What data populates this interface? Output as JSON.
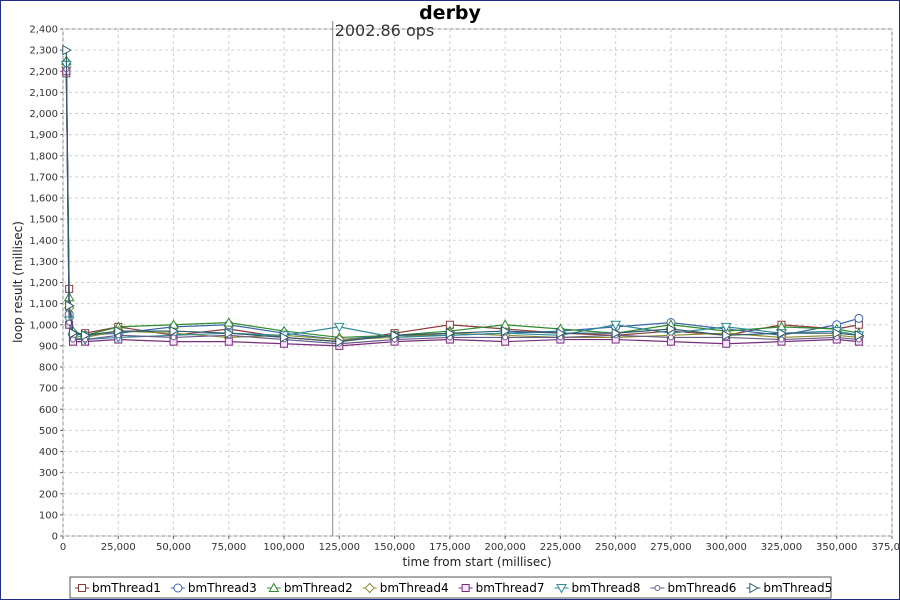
{
  "chart_data": {
    "type": "line",
    "title": "derby",
    "xlabel": "time from start (millisec)",
    "ylabel": "loop result (millisec)",
    "xlim": [
      0,
      375000
    ],
    "ylim": [
      0,
      2400
    ],
    "x_ticks": [
      "0",
      "25,000",
      "50,000",
      "75,000",
      "100,000",
      "125,000",
      "150,000",
      "175,000",
      "200,000",
      "225,000",
      "250,000",
      "275,000",
      "300,000",
      "325,000",
      "350,000",
      "375,000"
    ],
    "y_ticks": [
      "0",
      "100",
      "200",
      "300",
      "400",
      "500",
      "600",
      "700",
      "800",
      "900",
      "1,000",
      "1,100",
      "1,200",
      "1,300",
      "1,400",
      "1,500",
      "1,600",
      "1,700",
      "1,800",
      "1,900",
      "2,000",
      "2,100",
      "2,200",
      "2,300",
      "2,400"
    ],
    "grid": true,
    "legend_position": "bottom",
    "annotation": {
      "text": "2002.86 ops",
      "x": 122000
    },
    "series": [
      {
        "name": "bmThread1",
        "marker": "square",
        "color": "#8b3a3a",
        "points": [
          [
            1500,
            2190
          ],
          [
            2800,
            1170
          ],
          [
            4500,
            950
          ],
          [
            10000,
            960
          ],
          [
            25000,
            990
          ],
          [
            50000,
            950
          ],
          [
            75000,
            980
          ],
          [
            100000,
            940
          ],
          [
            125000,
            920
          ],
          [
            150000,
            960
          ],
          [
            175000,
            1000
          ],
          [
            200000,
            980
          ],
          [
            225000,
            960
          ],
          [
            250000,
            950
          ],
          [
            275000,
            970
          ],
          [
            300000,
            950
          ],
          [
            325000,
            1000
          ],
          [
            350000,
            980
          ],
          [
            360000,
            1000
          ]
        ]
      },
      {
        "name": "bmThread3",
        "marker": "circle",
        "color": "#3a66a8",
        "points": [
          [
            1500,
            2240
          ],
          [
            2800,
            1050
          ],
          [
            4500,
            960
          ],
          [
            10000,
            950
          ],
          [
            25000,
            960
          ],
          [
            50000,
            990
          ],
          [
            75000,
            1000
          ],
          [
            100000,
            960
          ],
          [
            125000,
            930
          ],
          [
            150000,
            950
          ],
          [
            175000,
            950
          ],
          [
            200000,
            960
          ],
          [
            225000,
            970
          ],
          [
            250000,
            990
          ],
          [
            275000,
            1010
          ],
          [
            300000,
            980
          ],
          [
            325000,
            950
          ],
          [
            350000,
            1000
          ],
          [
            360000,
            1030
          ]
        ]
      },
      {
        "name": "bmThread2",
        "marker": "triangle-up",
        "color": "#2e8b2e",
        "points": [
          [
            1500,
            2250
          ],
          [
            2800,
            1130
          ],
          [
            4500,
            970
          ],
          [
            10000,
            950
          ],
          [
            25000,
            990
          ],
          [
            50000,
            1000
          ],
          [
            75000,
            1010
          ],
          [
            100000,
            970
          ],
          [
            125000,
            940
          ],
          [
            150000,
            950
          ],
          [
            175000,
            970
          ],
          [
            200000,
            1000
          ],
          [
            225000,
            980
          ],
          [
            250000,
            960
          ],
          [
            275000,
            1000
          ],
          [
            300000,
            970
          ],
          [
            325000,
            990
          ],
          [
            350000,
            980
          ],
          [
            360000,
            960
          ]
        ]
      },
      {
        "name": "bmThread4",
        "marker": "diamond",
        "color": "#8b8b2e",
        "points": [
          [
            1500,
            2220
          ],
          [
            2800,
            1080
          ],
          [
            4500,
            950
          ],
          [
            10000,
            940
          ],
          [
            25000,
            970
          ],
          [
            50000,
            960
          ],
          [
            75000,
            940
          ],
          [
            100000,
            950
          ],
          [
            125000,
            930
          ],
          [
            150000,
            940
          ],
          [
            175000,
            960
          ],
          [
            200000,
            950
          ],
          [
            225000,
            940
          ],
          [
            250000,
            940
          ],
          [
            275000,
            950
          ],
          [
            300000,
            960
          ],
          [
            325000,
            940
          ],
          [
            350000,
            950
          ],
          [
            360000,
            940
          ]
        ]
      },
      {
        "name": "bmThread7",
        "marker": "square-open",
        "color": "#7a2e7a",
        "points": [
          [
            1500,
            2200
          ],
          [
            2800,
            1000
          ],
          [
            4500,
            920
          ],
          [
            10000,
            920
          ],
          [
            25000,
            930
          ],
          [
            50000,
            920
          ],
          [
            75000,
            920
          ],
          [
            100000,
            910
          ],
          [
            125000,
            900
          ],
          [
            150000,
            920
          ],
          [
            175000,
            930
          ],
          [
            200000,
            920
          ],
          [
            225000,
            930
          ],
          [
            250000,
            930
          ],
          [
            275000,
            920
          ],
          [
            300000,
            910
          ],
          [
            325000,
            920
          ],
          [
            350000,
            930
          ],
          [
            360000,
            920
          ]
        ]
      },
      {
        "name": "bmThread8",
        "marker": "triangle-down",
        "color": "#2e8b9a",
        "points": [
          [
            1500,
            2230
          ],
          [
            2800,
            1020
          ],
          [
            4500,
            940
          ],
          [
            10000,
            930
          ],
          [
            25000,
            940
          ],
          [
            50000,
            950
          ],
          [
            75000,
            960
          ],
          [
            100000,
            950
          ],
          [
            125000,
            990
          ],
          [
            150000,
            940
          ],
          [
            175000,
            950
          ],
          [
            200000,
            960
          ],
          [
            225000,
            950
          ],
          [
            250000,
            1000
          ],
          [
            275000,
            960
          ],
          [
            300000,
            990
          ],
          [
            325000,
            960
          ],
          [
            350000,
            970
          ],
          [
            360000,
            950
          ]
        ]
      },
      {
        "name": "bmThread6",
        "marker": "circle-small",
        "color": "#6a5a8a",
        "points": [
          [
            1500,
            2210
          ],
          [
            2800,
            1010
          ],
          [
            4500,
            930
          ],
          [
            10000,
            930
          ],
          [
            25000,
            950
          ],
          [
            50000,
            940
          ],
          [
            75000,
            950
          ],
          [
            100000,
            930
          ],
          [
            125000,
            910
          ],
          [
            150000,
            930
          ],
          [
            175000,
            940
          ],
          [
            200000,
            940
          ],
          [
            225000,
            940
          ],
          [
            250000,
            950
          ],
          [
            275000,
            940
          ],
          [
            300000,
            940
          ],
          [
            325000,
            930
          ],
          [
            350000,
            940
          ],
          [
            360000,
            930
          ]
        ]
      },
      {
        "name": "bmThread5",
        "marker": "triangle-right",
        "color": "#2e5a6a",
        "points": [
          [
            1500,
            2300
          ],
          [
            2800,
            1090
          ],
          [
            4500,
            960
          ],
          [
            10000,
            950
          ],
          [
            25000,
            970
          ],
          [
            50000,
            970
          ],
          [
            75000,
            960
          ],
          [
            100000,
            940
          ],
          [
            125000,
            920
          ],
          [
            150000,
            950
          ],
          [
            175000,
            960
          ],
          [
            200000,
            970
          ],
          [
            225000,
            960
          ],
          [
            250000,
            960
          ],
          [
            275000,
            980
          ],
          [
            300000,
            950
          ],
          [
            325000,
            960
          ],
          [
            350000,
            960
          ],
          [
            360000,
            950
          ]
        ]
      }
    ]
  }
}
